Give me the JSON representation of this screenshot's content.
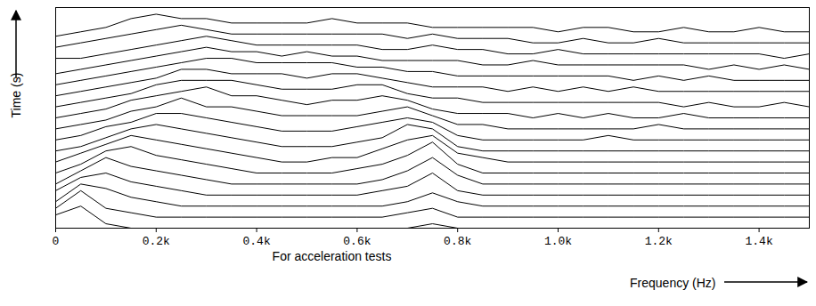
{
  "chart_data": {
    "type": "waterfall",
    "xlabel": "Frequency (Hz)",
    "ylabel": "Time (s)",
    "annotations": [
      "For acceleration tests"
    ],
    "color": "#000000",
    "grid": false,
    "tick_labels": "x",
    "xlim": [
      0,
      1500
    ],
    "xticks": [
      0,
      {
        "value": 200,
        "label": "0.2k"
      },
      {
        "value": 400,
        "label": "0.4k"
      },
      {
        "value": 600,
        "label": "0.6k"
      },
      {
        "value": 800,
        "label": "0.8k"
      },
      {
        "value": 1000,
        "label": "1.0k"
      },
      {
        "value": 1200,
        "label": "1.2k"
      },
      {
        "value": 1400,
        "label": "1.4k"
      }
    ],
    "ylim": [
      0,
      50
    ],
    "yticks": [],
    "x": [
      0,
      50,
      100,
      150,
      200,
      250,
      300,
      350,
      400,
      450,
      500,
      550,
      600,
      650,
      700,
      750,
      800,
      850,
      900,
      950,
      1000,
      1050,
      1100,
      1150,
      1200,
      1250,
      1300,
      1350,
      1400,
      1450,
      1500
    ],
    "series": [
      {
        "values": [
          3,
          5,
          1,
          0,
          0,
          0,
          0,
          0,
          0,
          0,
          0,
          0,
          0,
          0,
          0,
          1,
          0,
          0,
          0,
          0,
          0,
          0,
          0,
          0,
          0,
          0,
          0,
          0,
          0,
          0,
          0
        ]
      },
      {
        "values": [
          2,
          6,
          2,
          1,
          0,
          0,
          0,
          0,
          0,
          0,
          0,
          0,
          0,
          0,
          1,
          2,
          0,
          0,
          0,
          0,
          0,
          0,
          0,
          0,
          0,
          0,
          0,
          0,
          0,
          0,
          0
        ]
      },
      {
        "values": [
          1,
          5,
          4,
          2,
          1,
          0,
          0,
          0,
          0,
          0,
          0,
          0,
          0,
          0,
          1,
          3,
          1,
          0,
          0,
          0,
          0,
          0,
          0,
          0,
          0,
          0,
          0,
          0,
          0,
          0,
          0
        ]
      },
      {
        "values": [
          1,
          4,
          5,
          3,
          2,
          1,
          0,
          0,
          0,
          0,
          0,
          0,
          0,
          1,
          2,
          5,
          1,
          0,
          0,
          0,
          0,
          0,
          0,
          0,
          0,
          0,
          0,
          0,
          0,
          0,
          0
        ]
      },
      {
        "values": [
          0,
          3,
          6,
          4,
          3,
          2,
          1,
          0,
          0,
          0,
          0,
          0,
          0,
          1,
          3,
          6,
          2,
          0,
          0,
          0,
          0,
          0,
          0,
          0,
          0,
          0,
          0,
          0,
          0,
          0,
          0
        ]
      },
      {
        "values": [
          0,
          2,
          5,
          6,
          4,
          3,
          2,
          1,
          0,
          0,
          0,
          0,
          1,
          2,
          4,
          7,
          2,
          0,
          0,
          0,
          0,
          0,
          0,
          0,
          0,
          0,
          0,
          0,
          0,
          0,
          0
        ]
      },
      {
        "values": [
          0,
          2,
          4,
          6,
          5,
          4,
          3,
          2,
          1,
          0,
          0,
          1,
          1,
          3,
          5,
          6,
          2,
          1,
          0,
          0,
          0,
          0,
          0,
          0,
          0,
          0,
          0,
          0,
          0,
          0,
          0
        ]
      },
      {
        "values": [
          0,
          1,
          3,
          5,
          6,
          5,
          4,
          3,
          2,
          1,
          1,
          1,
          2,
          3,
          6,
          5,
          1,
          0,
          0,
          0,
          0,
          0,
          0,
          0,
          0,
          0,
          0,
          0,
          0,
          0,
          0
        ]
      },
      {
        "values": [
          0,
          1,
          3,
          4,
          6,
          6,
          5,
          4,
          3,
          2,
          2,
          2,
          3,
          4,
          5,
          4,
          1,
          0,
          0,
          0,
          0,
          0,
          1,
          0,
          0,
          0,
          0,
          0,
          0,
          0,
          0
        ]
      },
      {
        "values": [
          0,
          1,
          2,
          4,
          5,
          7,
          5,
          5,
          4,
          3,
          3,
          3,
          3,
          4,
          5,
          3,
          1,
          1,
          0,
          0,
          0,
          0,
          0,
          0,
          1,
          0,
          0,
          0,
          0,
          0,
          0
        ]
      },
      {
        "values": [
          0,
          1,
          2,
          4,
          5,
          6,
          7,
          5,
          5,
          4,
          3,
          4,
          4,
          5,
          4,
          2,
          1,
          1,
          1,
          0,
          1,
          0,
          1,
          0,
          0,
          1,
          0,
          0,
          0,
          0,
          0
        ]
      },
      {
        "values": [
          0,
          1,
          2,
          3,
          5,
          6,
          6,
          6,
          5,
          4,
          4,
          4,
          5,
          5,
          3,
          2,
          2,
          1,
          1,
          1,
          1,
          1,
          1,
          1,
          1,
          0,
          1,
          0,
          0,
          1,
          0
        ]
      },
      {
        "values": [
          0,
          1,
          2,
          3,
          4,
          6,
          6,
          5,
          5,
          5,
          4,
          5,
          5,
          4,
          3,
          2,
          2,
          2,
          1,
          2,
          1,
          2,
          1,
          2,
          1,
          1,
          1,
          1,
          1,
          1,
          1
        ]
      },
      {
        "values": [
          0,
          1,
          2,
          3,
          4,
          5,
          6,
          6,
          5,
          5,
          5,
          5,
          4,
          4,
          3,
          3,
          2,
          2,
          2,
          2,
          2,
          2,
          2,
          1,
          2,
          1,
          2,
          1,
          1,
          1,
          1
        ]
      },
      {
        "values": [
          0,
          1,
          2,
          3,
          4,
          5,
          6,
          5,
          5,
          4,
          5,
          4,
          4,
          3,
          3,
          3,
          3,
          2,
          2,
          3,
          2,
          2,
          2,
          2,
          2,
          2,
          1,
          2,
          1,
          2,
          1
        ]
      },
      {
        "values": [
          1,
          1,
          2,
          3,
          4,
          5,
          6,
          5,
          4,
          4,
          4,
          4,
          4,
          3,
          3,
          4,
          3,
          3,
          2,
          2,
          3,
          2,
          2,
          2,
          2,
          2,
          2,
          2,
          2,
          1,
          2
        ]
      },
      {
        "values": [
          1,
          2,
          3,
          4,
          5,
          6,
          5,
          4,
          4,
          4,
          4,
          4,
          4,
          4,
          3,
          4,
          3,
          3,
          3,
          2,
          2,
          3,
          2,
          2,
          3,
          2,
          2,
          2,
          2,
          2,
          2
        ]
      },
      {
        "values": [
          1,
          2,
          3,
          5,
          6,
          5,
          5,
          4,
          4,
          4,
          4,
          5,
          4,
          4,
          4,
          3,
          3,
          3,
          3,
          3,
          2,
          3,
          3,
          2,
          2,
          3,
          2,
          2,
          3,
          2,
          2
        ]
      }
    ]
  }
}
